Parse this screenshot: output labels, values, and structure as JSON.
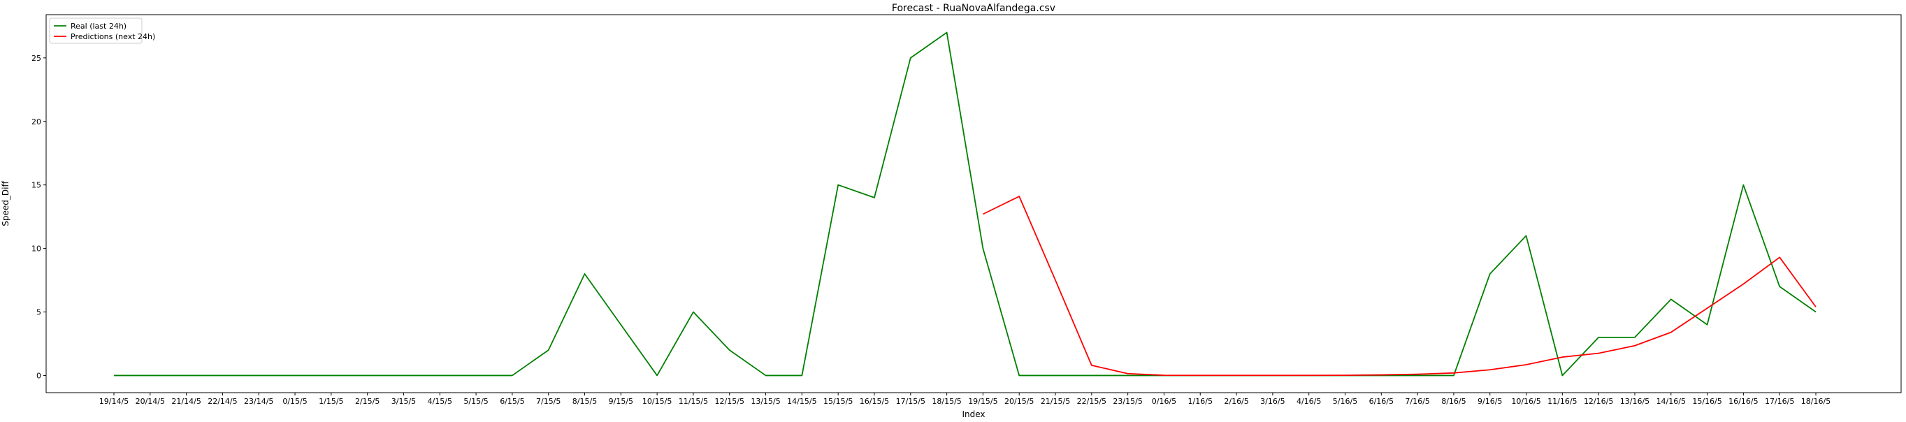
{
  "chart_data": {
    "type": "line",
    "title": "Forecast - RuaNovaAlfandega.csv",
    "xlabel": "Index",
    "ylabel": "Speed_Diff",
    "categories": [
      "19/14/5",
      "20/14/5",
      "21/14/5",
      "22/14/5",
      "23/14/5",
      "0/15/5",
      "1/15/5",
      "2/15/5",
      "3/15/5",
      "4/15/5",
      "5/15/5",
      "6/15/5",
      "7/15/5",
      "8/15/5",
      "9/15/5",
      "10/15/5",
      "11/15/5",
      "12/15/5",
      "13/15/5",
      "14/15/5",
      "15/15/5",
      "16/15/5",
      "17/15/5",
      "18/15/5",
      "19/15/5",
      "20/15/5",
      "21/15/5",
      "22/15/5",
      "23/15/5",
      "0/16/5",
      "1/16/5",
      "2/16/5",
      "3/16/5",
      "4/16/5",
      "5/16/5",
      "6/16/5",
      "7/16/5",
      "8/16/5",
      "9/16/5",
      "10/16/5",
      "11/16/5",
      "12/16/5",
      "13/16/5",
      "14/16/5",
      "15/16/5",
      "16/16/5",
      "17/16/5",
      "18/16/5"
    ],
    "y_ticks": [
      0,
      5,
      10,
      15,
      20,
      25
    ],
    "ylim": [
      -1.35,
      28.4
    ],
    "legend_position": "top-left",
    "grid": false,
    "series": [
      {
        "name": "Real (last 24h)",
        "color": "#008000",
        "values": [
          0,
          0,
          0,
          0,
          0,
          0,
          0,
          0,
          0,
          0,
          0,
          0,
          2,
          8,
          4,
          0,
          5,
          2,
          0,
          0,
          15,
          14,
          25,
          27,
          10,
          0,
          0,
          0,
          0,
          0,
          0,
          0,
          0,
          0,
          0,
          0,
          0,
          0,
          8,
          11,
          0,
          3,
          3,
          6,
          4,
          15,
          7,
          5
        ]
      },
      {
        "name": "Predictions (next 24h)",
        "color": "#ff0000",
        "values": [
          null,
          null,
          null,
          null,
          null,
          null,
          null,
          null,
          null,
          null,
          null,
          null,
          null,
          null,
          null,
          null,
          null,
          null,
          null,
          null,
          null,
          null,
          null,
          null,
          12.7,
          14.1,
          7.5,
          0.8,
          0.15,
          0.02,
          0.01,
          0.01,
          0.01,
          0.01,
          0.02,
          0.05,
          0.1,
          0.2,
          0.45,
          0.85,
          1.45,
          1.75,
          2.35,
          3.4,
          5.3,
          7.2,
          9.3,
          5.4
        ]
      }
    ]
  }
}
